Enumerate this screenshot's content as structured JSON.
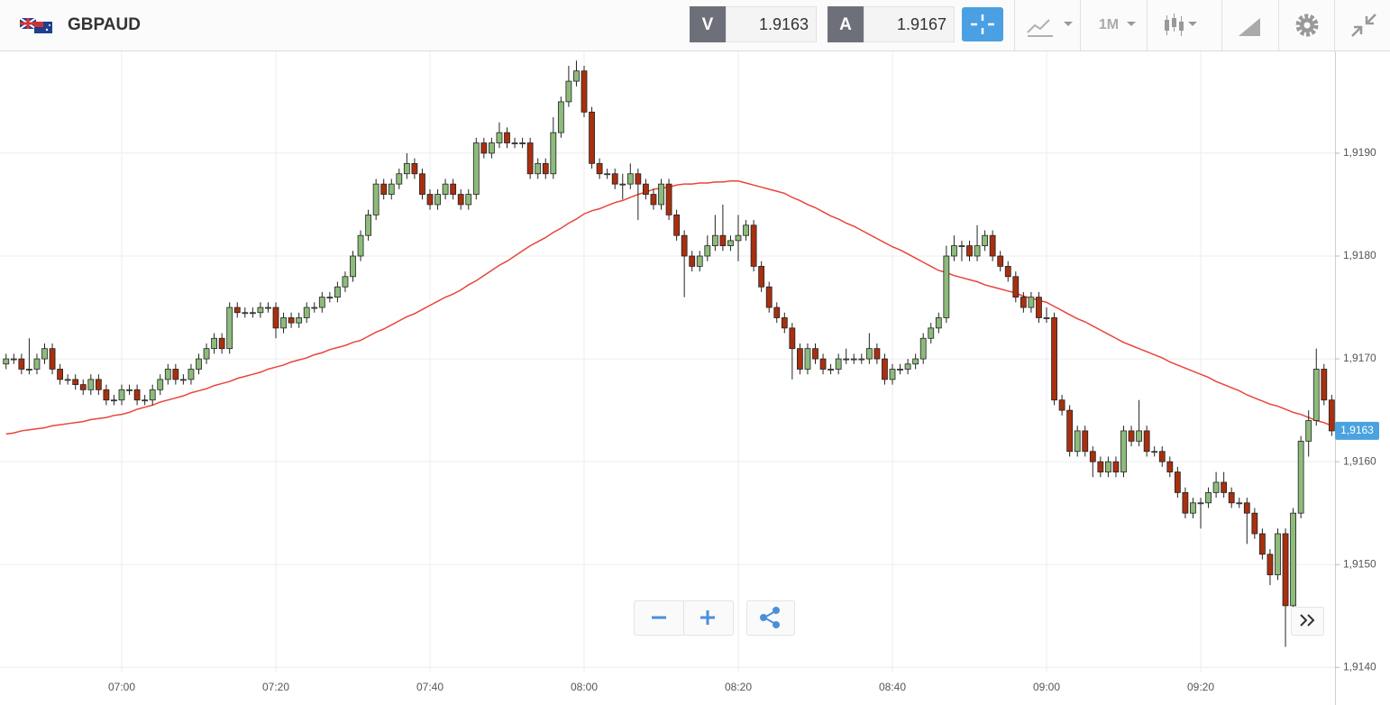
{
  "header": {
    "symbol": "GBPAUD",
    "sell_label": "V",
    "sell_price": 1.9163,
    "buy_label": "A",
    "buy_price": 1.9167,
    "timeframe": "1M"
  },
  "chart_data": {
    "type": "candlestick",
    "categories": [
      null,
      null,
      null,
      null,
      null,
      null,
      null,
      null,
      null,
      null,
      null,
      null,
      null,
      null,
      null,
      "07:00",
      null,
      null,
      null,
      null,
      null,
      null,
      null,
      null,
      null,
      null,
      null,
      null,
      null,
      null,
      null,
      null,
      null,
      null,
      null,
      "07:20",
      null,
      null,
      null,
      null,
      null,
      null,
      null,
      null,
      null,
      null,
      null,
      null,
      null,
      null,
      null,
      null,
      null,
      null,
      null,
      "07:40",
      null,
      null,
      null,
      null,
      null,
      null,
      null,
      null,
      null,
      null,
      null,
      null,
      null,
      null,
      null,
      null,
      null,
      null,
      null,
      "08:00",
      null,
      null,
      null,
      null,
      null,
      null,
      null,
      null,
      null,
      null,
      null,
      null,
      null,
      null,
      null,
      null,
      null,
      null,
      null,
      "08:20",
      null,
      null,
      null,
      null,
      null,
      null,
      null,
      null,
      null,
      null,
      null,
      null,
      null,
      null,
      null,
      null,
      null,
      null,
      null,
      "08:40",
      null,
      null,
      null,
      null,
      null,
      null,
      null,
      null,
      null,
      null,
      null,
      null,
      null,
      null,
      null,
      null,
      null,
      null,
      null,
      "09:00",
      null,
      null,
      null,
      null,
      null,
      null,
      null,
      null,
      null,
      null,
      null,
      null,
      null,
      null,
      null,
      null,
      null,
      null,
      null,
      "09:20",
      null,
      null,
      null,
      null,
      null,
      null,
      null,
      null,
      null,
      null,
      null,
      null,
      null,
      null,
      null,
      null,
      null
    ],
    "open": [
      1.91695,
      1.917,
      1.917,
      1.9169,
      1.9169,
      1.917,
      1.9171,
      1.9169,
      1.9168,
      1.9168,
      1.91675,
      1.9167,
      1.9168,
      1.9167,
      1.9166,
      1.9166,
      1.9167,
      1.9167,
      1.9166,
      1.9166,
      1.9167,
      1.9168,
      1.9169,
      1.9168,
      1.9168,
      1.9169,
      1.917,
      1.9171,
      1.9172,
      1.9171,
      1.9175,
      1.91745,
      1.91745,
      1.91745,
      1.9175,
      1.9175,
      1.9173,
      1.9174,
      1.91735,
      1.9174,
      1.9175,
      1.9175,
      1.9176,
      1.9176,
      1.9177,
      1.9178,
      1.918,
      1.9182,
      1.9184,
      1.9187,
      1.9186,
      1.9187,
      1.9188,
      1.9189,
      1.9188,
      1.9186,
      1.9185,
      1.9186,
      1.9187,
      1.9186,
      1.9185,
      1.9186,
      1.9191,
      1.919,
      1.9191,
      1.9192,
      1.9191,
      1.9191,
      1.9191,
      1.9188,
      1.9189,
      1.9188,
      1.9192,
      1.9195,
      1.9197,
      1.9198,
      1.9194,
      1.9189,
      1.9188,
      1.9188,
      1.9187,
      1.9187,
      1.9188,
      1.9187,
      1.9186,
      1.9185,
      1.9187,
      1.9184,
      1.9182,
      1.918,
      1.9179,
      1.918,
      1.9181,
      1.9182,
      1.9181,
      1.91815,
      1.9182,
      1.9183,
      1.9179,
      1.9177,
      1.9175,
      1.9174,
      1.9173,
      1.9171,
      1.9169,
      1.9171,
      1.917,
      1.9169,
      1.9169,
      1.917,
      1.917,
      1.917,
      1.917,
      1.9171,
      1.917,
      1.9168,
      1.9169,
      1.9169,
      1.91695,
      1.917,
      1.9172,
      1.9173,
      1.9174,
      1.918,
      1.9181,
      1.9181,
      1.918,
      1.9181,
      1.9182,
      1.918,
      1.9179,
      1.9178,
      1.9176,
      1.9175,
      1.9176,
      1.9174,
      1.9174,
      1.9166,
      1.9165,
      1.9161,
      1.9163,
      1.9161,
      1.916,
      1.9159,
      1.916,
      1.9159,
      1.9163,
      1.9162,
      1.9163,
      1.9161,
      1.9161,
      1.916,
      1.9159,
      1.9157,
      1.9155,
      1.9156,
      1.9156,
      1.9157,
      1.9158,
      1.9157,
      1.9156,
      1.9156,
      1.9155,
      1.9153,
      1.9151,
      1.9149,
      1.9153,
      1.9146,
      1.9155,
      1.9162,
      1.9164,
      1.9169,
      1.9166
    ],
    "high": [
      1.91705,
      1.91705,
      1.91705,
      1.9172,
      1.91705,
      1.91715,
      1.91715,
      1.91695,
      1.91685,
      1.91685,
      1.9168,
      1.91685,
      1.91685,
      1.91675,
      1.91665,
      1.91675,
      1.91675,
      1.91675,
      1.91665,
      1.91675,
      1.91685,
      1.91695,
      1.91695,
      1.91685,
      1.91695,
      1.91705,
      1.91715,
      1.91725,
      1.91725,
      1.91755,
      1.91755,
      1.9175,
      1.9175,
      1.91755,
      1.91755,
      1.91755,
      1.91745,
      1.91745,
      1.91745,
      1.91755,
      1.91755,
      1.91765,
      1.91765,
      1.91775,
      1.91785,
      1.91805,
      1.91825,
      1.91845,
      1.91875,
      1.91875,
      1.91875,
      1.91885,
      1.919,
      1.91895,
      1.91885,
      1.91865,
      1.91865,
      1.91875,
      1.91875,
      1.91865,
      1.91865,
      1.91915,
      1.91915,
      1.91915,
      1.9193,
      1.91925,
      1.91915,
      1.91915,
      1.91915,
      1.91895,
      1.91895,
      1.91935,
      1.91955,
      1.91985,
      1.9199,
      1.91985,
      1.91945,
      1.91895,
      1.91885,
      1.91885,
      1.9188,
      1.9189,
      1.91885,
      1.91875,
      1.91865,
      1.91875,
      1.91875,
      1.91845,
      1.91825,
      1.91805,
      1.91805,
      1.9182,
      1.9184,
      1.9185,
      1.9182,
      1.9184,
      1.91835,
      1.91835,
      1.91795,
      1.91775,
      1.91755,
      1.91745,
      1.91735,
      1.91715,
      1.91715,
      1.91715,
      1.91705,
      1.91695,
      1.91705,
      1.9171,
      1.91705,
      1.91705,
      1.91725,
      1.91715,
      1.91705,
      1.91695,
      1.91695,
      1.917,
      1.91705,
      1.91725,
      1.91735,
      1.91745,
      1.9181,
      1.9182,
      1.91815,
      1.91815,
      1.9183,
      1.91825,
      1.91825,
      1.91805,
      1.91795,
      1.91785,
      1.91765,
      1.91765,
      1.91765,
      1.9175,
      1.91745,
      1.91665,
      1.91655,
      1.91635,
      1.91635,
      1.91615,
      1.91605,
      1.91605,
      1.91605,
      1.91635,
      1.91635,
      1.9166,
      1.91635,
      1.91615,
      1.91615,
      1.91605,
      1.91595,
      1.91575,
      1.91565,
      1.91565,
      1.91575,
      1.9159,
      1.9159,
      1.91575,
      1.91565,
      1.91565,
      1.91555,
      1.91535,
      1.91515,
      1.91535,
      1.91535,
      1.91555,
      1.91625,
      1.9165,
      1.9171,
      1.91695,
      1.91665
    ],
    "low": [
      1.9169,
      1.91695,
      1.91685,
      1.91685,
      1.91685,
      1.91695,
      1.91685,
      1.91675,
      1.91675,
      1.9167,
      1.91665,
      1.91665,
      1.91665,
      1.91655,
      1.91655,
      1.91655,
      1.91665,
      1.91655,
      1.91655,
      1.91655,
      1.91665,
      1.91675,
      1.91675,
      1.91675,
      1.91675,
      1.91685,
      1.91695,
      1.91705,
      1.91705,
      1.91705,
      1.9174,
      1.9174,
      1.9174,
      1.9174,
      1.91745,
      1.9172,
      1.91725,
      1.9173,
      1.9173,
      1.91735,
      1.91745,
      1.91745,
      1.91755,
      1.91755,
      1.91765,
      1.91775,
      1.91795,
      1.91815,
      1.91835,
      1.91855,
      1.91855,
      1.91865,
      1.91875,
      1.91875,
      1.91855,
      1.91845,
      1.91845,
      1.91855,
      1.91855,
      1.91845,
      1.91845,
      1.91855,
      1.91895,
      1.91895,
      1.91905,
      1.91905,
      1.91905,
      1.91905,
      1.91875,
      1.91875,
      1.91875,
      1.91875,
      1.91915,
      1.91945,
      1.91965,
      1.91935,
      1.91885,
      1.91875,
      1.91875,
      1.91865,
      1.91855,
      1.91865,
      1.91835,
      1.91855,
      1.91845,
      1.91845,
      1.91835,
      1.91815,
      1.9176,
      1.91785,
      1.91785,
      1.91795,
      1.91805,
      1.91805,
      1.91805,
      1.91795,
      1.91815,
      1.91785,
      1.91765,
      1.91745,
      1.91735,
      1.91725,
      1.9168,
      1.91685,
      1.91685,
      1.91695,
      1.91685,
      1.91685,
      1.91685,
      1.91695,
      1.91695,
      1.91695,
      1.91695,
      1.91695,
      1.91675,
      1.91675,
      1.91685,
      1.91685,
      1.9169,
      1.91695,
      1.91715,
      1.91725,
      1.91735,
      1.91795,
      1.91795,
      1.91795,
      1.91795,
      1.91805,
      1.91795,
      1.91785,
      1.91775,
      1.91755,
      1.91745,
      1.91745,
      1.91735,
      1.91735,
      1.91655,
      1.91645,
      1.91605,
      1.91605,
      1.91605,
      1.91585,
      1.91585,
      1.91585,
      1.91585,
      1.91585,
      1.91615,
      1.91615,
      1.91605,
      1.91605,
      1.91595,
      1.91585,
      1.91565,
      1.91545,
      1.91545,
      1.91535,
      1.91555,
      1.91565,
      1.91565,
      1.91555,
      1.91555,
      1.9152,
      1.91525,
      1.91505,
      1.9148,
      1.91485,
      1.9142,
      1.9145,
      1.91545,
      1.91605,
      1.91635,
      1.91655,
      1.91625
    ],
    "close": [
      1.917,
      1.917,
      1.9169,
      1.9169,
      1.917,
      1.9171,
      1.9169,
      1.9168,
      1.9168,
      1.91675,
      1.9167,
      1.9168,
      1.9167,
      1.9166,
      1.9166,
      1.9167,
      1.9167,
      1.9166,
      1.9166,
      1.9167,
      1.9168,
      1.9169,
      1.9168,
      1.9168,
      1.9169,
      1.917,
      1.9171,
      1.9172,
      1.9171,
      1.9175,
      1.91745,
      1.91745,
      1.91745,
      1.9175,
      1.9175,
      1.9173,
      1.9174,
      1.91735,
      1.9174,
      1.9175,
      1.9175,
      1.9176,
      1.9176,
      1.9177,
      1.9178,
      1.918,
      1.9182,
      1.9184,
      1.9187,
      1.9186,
      1.9187,
      1.9188,
      1.9189,
      1.9188,
      1.9186,
      1.9185,
      1.9186,
      1.9187,
      1.9186,
      1.9185,
      1.9186,
      1.9191,
      1.919,
      1.9191,
      1.9192,
      1.9191,
      1.9191,
      1.9191,
      1.9188,
      1.9189,
      1.9188,
      1.9192,
      1.9195,
      1.9197,
      1.9198,
      1.9194,
      1.9189,
      1.9188,
      1.9188,
      1.9187,
      1.9187,
      1.9188,
      1.9187,
      1.9186,
      1.9185,
      1.9187,
      1.9184,
      1.9182,
      1.918,
      1.9179,
      1.918,
      1.9181,
      1.9182,
      1.9181,
      1.91815,
      1.9182,
      1.9183,
      1.9179,
      1.9177,
      1.9175,
      1.9174,
      1.9173,
      1.9171,
      1.9169,
      1.9171,
      1.917,
      1.9169,
      1.9169,
      1.917,
      1.917,
      1.917,
      1.917,
      1.9171,
      1.917,
      1.9168,
      1.9169,
      1.9169,
      1.91695,
      1.917,
      1.9172,
      1.9173,
      1.9174,
      1.918,
      1.9181,
      1.9181,
      1.918,
      1.9181,
      1.9182,
      1.918,
      1.9179,
      1.9178,
      1.9176,
      1.9175,
      1.9176,
      1.9174,
      1.9174,
      1.9166,
      1.9165,
      1.9161,
      1.9163,
      1.9161,
      1.916,
      1.9159,
      1.916,
      1.9159,
      1.9163,
      1.9162,
      1.9163,
      1.9161,
      1.9161,
      1.916,
      1.9159,
      1.9157,
      1.9155,
      1.9156,
      1.9156,
      1.9157,
      1.9158,
      1.9157,
      1.9156,
      1.9156,
      1.9155,
      1.9153,
      1.9151,
      1.9149,
      1.9153,
      1.9146,
      1.9155,
      1.9162,
      1.9164,
      1.9169,
      1.9166,
      1.9163
    ],
    "up_color": "#8dbb7b",
    "down_color": "#a8300f",
    "series": [
      {
        "color": "#e8453c",
        "values": [
          1.91627,
          1.91628,
          1.9163,
          1.91631,
          1.91632,
          1.91633,
          1.91635,
          1.91636,
          1.91637,
          1.91638,
          1.91639,
          1.91641,
          1.91642,
          1.91643,
          1.91645,
          1.91646,
          1.91648,
          1.91651,
          1.91653,
          1.91655,
          1.91658,
          1.9166,
          1.91662,
          1.91664,
          1.91667,
          1.91669,
          1.91671,
          1.91674,
          1.91676,
          1.91678,
          1.91681,
          1.91683,
          1.91685,
          1.91687,
          1.9169,
          1.91692,
          1.91694,
          1.91697,
          1.91699,
          1.91701,
          1.91704,
          1.91706,
          1.91709,
          1.91711,
          1.91713,
          1.91716,
          1.91718,
          1.91722,
          1.91726,
          1.91729,
          1.91733,
          1.91737,
          1.91741,
          1.91744,
          1.91748,
          1.91752,
          1.91756,
          1.9176,
          1.91763,
          1.91767,
          1.91772,
          1.91776,
          1.91781,
          1.91786,
          1.91791,
          1.91795,
          1.918,
          1.91805,
          1.9181,
          1.91814,
          1.91818,
          1.91823,
          1.91827,
          1.91832,
          1.91836,
          1.91841,
          1.91844,
          1.91846,
          1.91849,
          1.91852,
          1.91854,
          1.91857,
          1.9186,
          1.91862,
          1.91865,
          1.91866,
          1.91867,
          1.91869,
          1.9187,
          1.9187,
          1.91871,
          1.91871,
          1.91872,
          1.91872,
          1.91873,
          1.91873,
          1.91871,
          1.91869,
          1.91867,
          1.91865,
          1.91863,
          1.91861,
          1.91857,
          1.91854,
          1.9185,
          1.91847,
          1.91843,
          1.91839,
          1.91836,
          1.91832,
          1.91829,
          1.91825,
          1.91821,
          1.91817,
          1.91813,
          1.91809,
          1.91806,
          1.91802,
          1.91798,
          1.91794,
          1.9179,
          1.91786,
          1.91784,
          1.91781,
          1.91779,
          1.91777,
          1.91775,
          1.91772,
          1.9177,
          1.91768,
          1.91766,
          1.91764,
          1.91761,
          1.91759,
          1.91757,
          1.91755,
          1.91751,
          1.91747,
          1.91743,
          1.91739,
          1.91736,
          1.91732,
          1.91728,
          1.91724,
          1.9172,
          1.91716,
          1.91713,
          1.9171,
          1.91707,
          1.91704,
          1.91701,
          1.91697,
          1.91694,
          1.91691,
          1.91688,
          1.91685,
          1.91682,
          1.91678,
          1.91675,
          1.91672,
          1.91669,
          1.91665,
          1.91662,
          1.91659,
          1.91656,
          1.91654,
          1.91651,
          1.91648,
          1.91646,
          1.91643,
          1.9164,
          1.91638,
          1.91635
        ]
      }
    ],
    "ylim": [
      1.91395,
      1.91999
    ],
    "yticks": [
      {
        "value": 1.914,
        "label": "1,9140"
      },
      {
        "value": 1.915,
        "label": "1,9150"
      },
      {
        "value": 1.916,
        "label": "1,9160"
      },
      {
        "value": 1.917,
        "label": "1,9170"
      },
      {
        "value": 1.918,
        "label": "1,9180"
      },
      {
        "value": 1.919,
        "label": "1,9190"
      }
    ],
    "grid": true,
    "last_price": {
      "value": 1.9163,
      "label": "1,9163"
    }
  }
}
